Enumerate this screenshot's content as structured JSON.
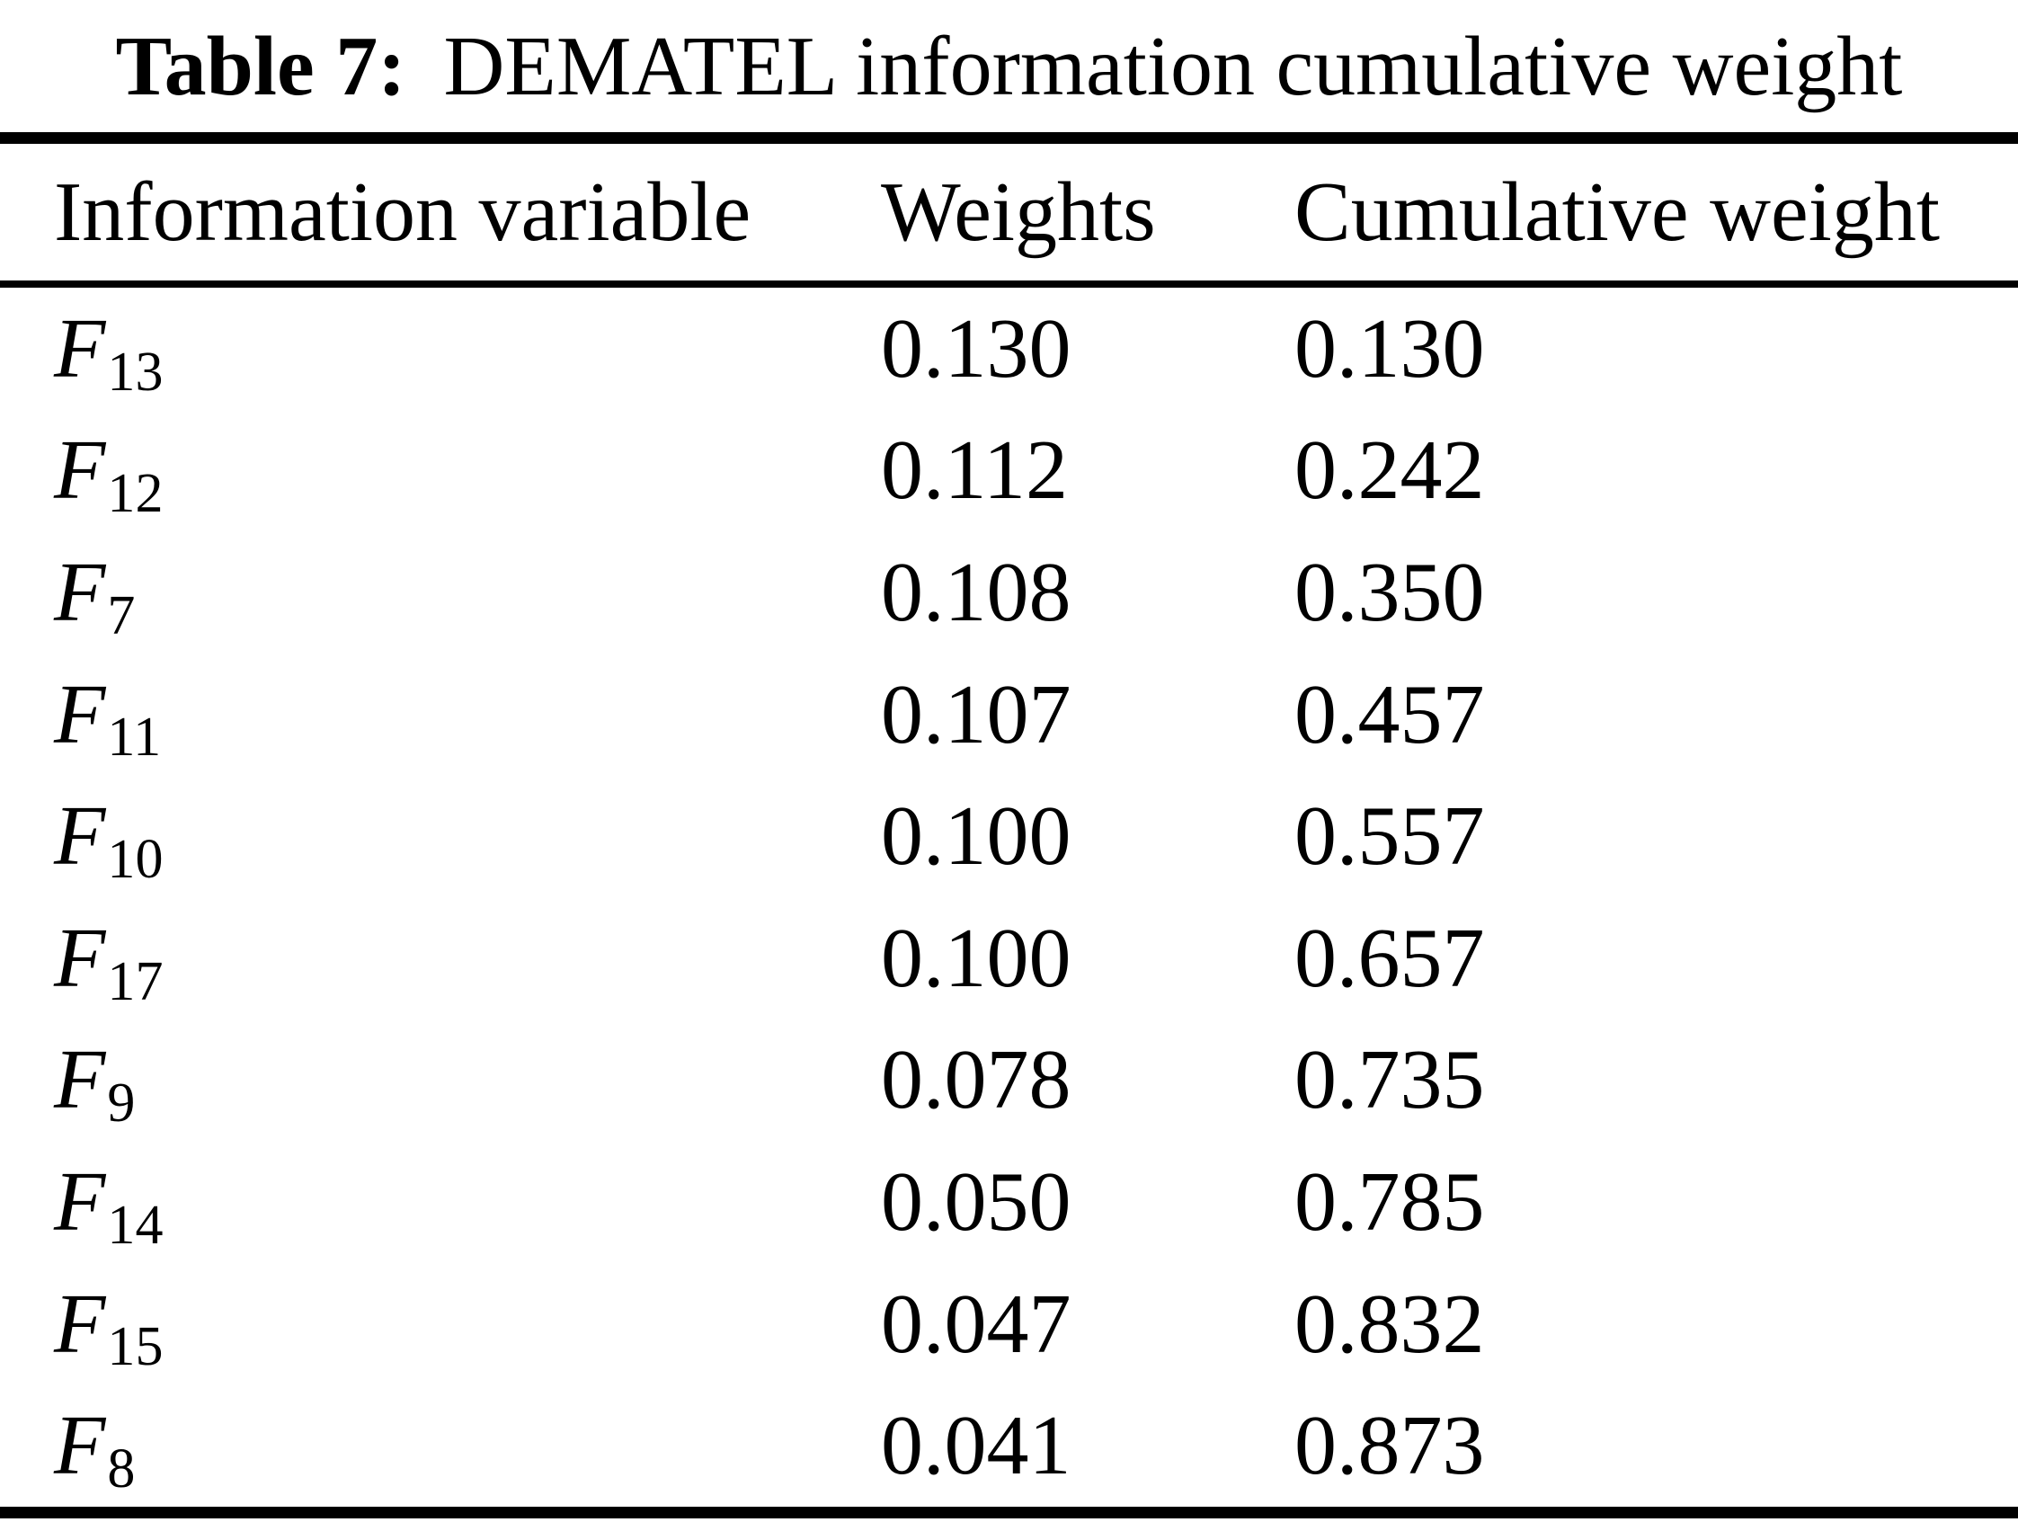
{
  "title": {
    "prefix": "Table 7:",
    "text": "DEMATEL information cumulative weight"
  },
  "table": {
    "headers": [
      "Information variable",
      "Weights",
      "Cumulative weight"
    ],
    "rows": [
      {
        "var": "F",
        "sub": "13",
        "weight": "0.130",
        "cumulative": "0.130"
      },
      {
        "var": "F",
        "sub": "12",
        "weight": "0.112",
        "cumulative": "0.242"
      },
      {
        "var": "F",
        "sub": "7",
        "weight": "0.108",
        "cumulative": "0.350"
      },
      {
        "var": "F",
        "sub": "11",
        "weight": "0.107",
        "cumulative": "0.457"
      },
      {
        "var": "F",
        "sub": "10",
        "weight": "0.100",
        "cumulative": "0.557"
      },
      {
        "var": "F",
        "sub": "17",
        "weight": "0.100",
        "cumulative": "0.657"
      },
      {
        "var": "F",
        "sub": "9",
        "weight": "0.078",
        "cumulative": "0.735"
      },
      {
        "var": "F",
        "sub": "14",
        "weight": "0.050",
        "cumulative": "0.785"
      },
      {
        "var": "F",
        "sub": "15",
        "weight": "0.047",
        "cumulative": "0.832"
      },
      {
        "var": "F",
        "sub": "8",
        "weight": "0.041",
        "cumulative": "0.873"
      }
    ]
  },
  "colors": {
    "text": "#000000",
    "background": "#ffffff",
    "rule": "#000000"
  }
}
